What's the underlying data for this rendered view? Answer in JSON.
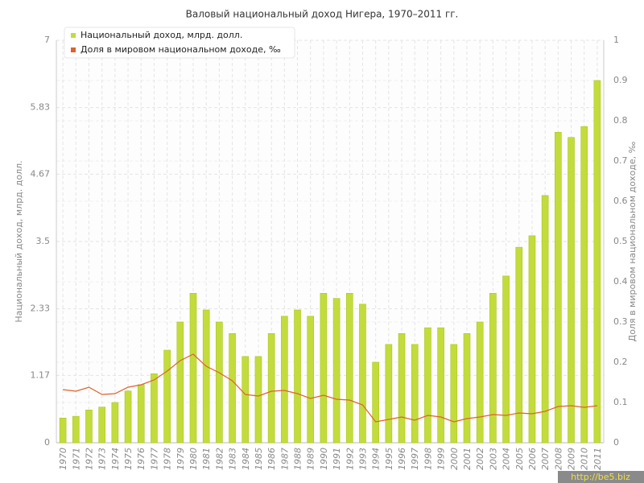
{
  "chart_data": {
    "type": "combo",
    "title": "Валовый национальный доход Нигера, 1970–2011 гг.",
    "y_label": "Национальный доход, млрд. долл.",
    "y2_label": "Доля в мировом национальном доходе, ‰",
    "categories": [
      "1970",
      "1971",
      "1972",
      "1973",
      "1974",
      "1975",
      "1976",
      "1977",
      "1978",
      "1979",
      "1980",
      "1981",
      "1982",
      "1983",
      "1984",
      "1985",
      "1986",
      "1987",
      "1988",
      "1989",
      "1990",
      "1991",
      "1992",
      "1993",
      "1994",
      "1995",
      "1996",
      "1997",
      "1998",
      "1999",
      "2000",
      "2001",
      "2002",
      "2003",
      "2004",
      "2005",
      "2006",
      "2007",
      "2008",
      "2009",
      "2010",
      "2011"
    ],
    "series": [
      {
        "name": "Национальный доход, млрд. долл.",
        "type": "bar",
        "color": "#c3dc3c",
        "values": [
          0.43,
          0.46,
          0.57,
          0.62,
          0.7,
          0.9,
          1.01,
          1.2,
          1.61,
          2.1,
          2.6,
          2.31,
          2.1,
          1.9,
          1.5,
          1.5,
          1.9,
          2.2,
          2.31,
          2.2,
          2.6,
          2.51,
          2.6,
          2.41,
          1.4,
          1.71,
          1.9,
          1.71,
          2.0,
          2.0,
          1.71,
          1.9,
          2.1,
          2.6,
          2.9,
          3.4,
          3.6,
          4.3,
          5.4,
          5.31,
          5.5,
          6.3
        ]
      },
      {
        "name": "Доля в мировом национальном доходе, ‰",
        "type": "line",
        "axis": "y2",
        "color": "#e0602c",
        "values": [
          0.132,
          0.128,
          0.138,
          0.12,
          0.122,
          0.138,
          0.144,
          0.156,
          0.178,
          0.204,
          0.22,
          0.19,
          0.174,
          0.154,
          0.12,
          0.116,
          0.128,
          0.13,
          0.122,
          0.11,
          0.118,
          0.108,
          0.106,
          0.094,
          0.052,
          0.058,
          0.064,
          0.056,
          0.068,
          0.064,
          0.052,
          0.06,
          0.064,
          0.07,
          0.068,
          0.074,
          0.072,
          0.078,
          0.09,
          0.092,
          0.088,
          0.092
        ]
      }
    ],
    "ylim": [
      0,
      7
    ],
    "yticks": [
      0,
      1.17,
      2.33,
      3.5,
      4.67,
      5.83,
      7
    ],
    "y2lim": [
      0,
      1
    ],
    "y2ticks": [
      0,
      0.1,
      0.2,
      0.3,
      0.4,
      0.5,
      0.6,
      0.7,
      0.8,
      0.9,
      1
    ],
    "grid": true,
    "legend": "top-left",
    "watermark": "http://be5.biz"
  }
}
